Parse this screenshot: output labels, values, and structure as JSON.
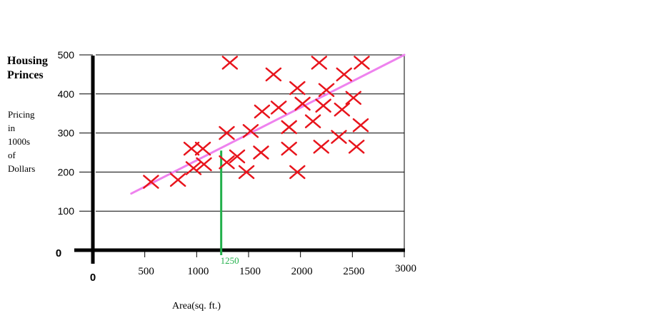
{
  "chart_data": {
    "type": "scatter",
    "title_lines": [
      "Housing",
      "Princes"
    ],
    "ylabel_lines": [
      "Pricing",
      "in",
      "1000s",
      "of",
      "Dollars"
    ],
    "xlabel": "Area(sq. ft.)",
    "xlim": [
      0,
      3000
    ],
    "ylim": [
      0,
      500
    ],
    "x_ticks": [
      0,
      500,
      1000,
      1500,
      2000,
      2500,
      3000
    ],
    "y_ticks": [
      0,
      100,
      200,
      300,
      400,
      500
    ],
    "gridlines_y": [
      100,
      200,
      300,
      400,
      500
    ],
    "points": [
      {
        "x": 560,
        "y": 175
      },
      {
        "x": 820,
        "y": 180
      },
      {
        "x": 950,
        "y": 260
      },
      {
        "x": 970,
        "y": 210
      },
      {
        "x": 1060,
        "y": 260
      },
      {
        "x": 1070,
        "y": 220
      },
      {
        "x": 1290,
        "y": 300
      },
      {
        "x": 1290,
        "y": 225
      },
      {
        "x": 1320,
        "y": 480
      },
      {
        "x": 1390,
        "y": 240
      },
      {
        "x": 1480,
        "y": 200
      },
      {
        "x": 1520,
        "y": 305
      },
      {
        "x": 1620,
        "y": 250
      },
      {
        "x": 1630,
        "y": 355
      },
      {
        "x": 1740,
        "y": 450
      },
      {
        "x": 1790,
        "y": 365
      },
      {
        "x": 1890,
        "y": 260
      },
      {
        "x": 1890,
        "y": 315
      },
      {
        "x": 1970,
        "y": 200
      },
      {
        "x": 1970,
        "y": 415
      },
      {
        "x": 2020,
        "y": 375
      },
      {
        "x": 2120,
        "y": 330
      },
      {
        "x": 2180,
        "y": 480
      },
      {
        "x": 2200,
        "y": 265
      },
      {
        "x": 2220,
        "y": 370
      },
      {
        "x": 2250,
        "y": 410
      },
      {
        "x": 2370,
        "y": 290
      },
      {
        "x": 2400,
        "y": 360
      },
      {
        "x": 2420,
        "y": 450
      },
      {
        "x": 2510,
        "y": 390
      },
      {
        "x": 2540,
        "y": 265
      },
      {
        "x": 2580,
        "y": 320
      },
      {
        "x": 2590,
        "y": 480
      }
    ],
    "trend_line": {
      "x": [
        370,
        3000
      ],
      "y": [
        145,
        500
      ],
      "color": "#ee82ee"
    },
    "marker": {
      "x": 1250,
      "y": 255,
      "label": "1250",
      "color": "#22b04b"
    },
    "point_color": "#e8141c"
  }
}
